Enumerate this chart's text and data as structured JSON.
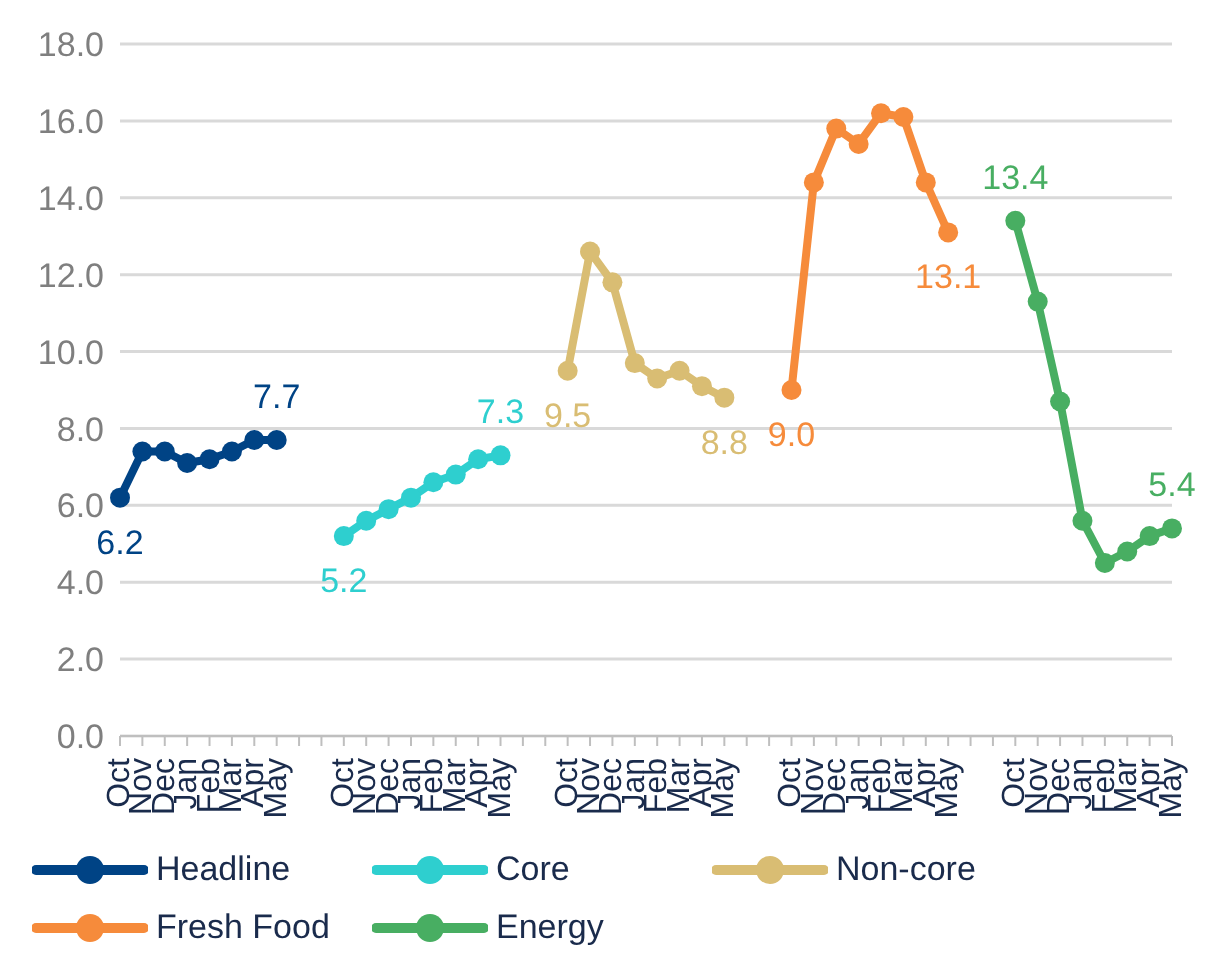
{
  "chart_data": {
    "type": "line",
    "categories": [
      "Oct",
      "Nov",
      "Dec",
      "Jan",
      "Feb",
      "Mar",
      "Apr",
      "May",
      null,
      null,
      "Oct",
      "Nov",
      "Dec",
      "Jan",
      "Feb",
      "Mar",
      "Apr",
      "May",
      null,
      null,
      "Oct",
      "Nov",
      "Dec",
      "Jan",
      "Feb",
      "Mar",
      "Apr",
      "May",
      null,
      null,
      "Oct",
      "Nov",
      "Dec",
      "Jan",
      "Feb",
      "Mar",
      "Apr",
      "May",
      null,
      null,
      "Oct",
      "Nov",
      "Dec",
      "Jan",
      "Feb",
      "Mar",
      "Apr",
      "May"
    ],
    "series": [
      {
        "name": "Headline",
        "color": "#004385",
        "values": [
          6.2,
          7.4,
          7.4,
          7.1,
          7.2,
          7.4,
          7.7,
          7.7,
          null,
          null,
          null,
          null,
          null,
          null,
          null,
          null,
          null,
          null,
          null,
          null,
          null,
          null,
          null,
          null,
          null,
          null,
          null,
          null,
          null,
          null,
          null,
          null,
          null,
          null,
          null,
          null,
          null,
          null,
          null,
          null,
          null,
          null,
          null,
          null,
          null,
          null,
          null,
          null
        ],
        "value_labels": [
          "6.2",
          null,
          null,
          null,
          null,
          null,
          null,
          "7.7",
          null,
          null,
          null,
          null,
          null,
          null,
          null,
          null,
          null,
          null,
          null,
          null,
          null,
          null,
          null,
          null,
          null,
          null,
          null,
          null,
          null,
          null,
          null,
          null,
          null,
          null,
          null,
          null,
          null,
          null,
          null,
          null,
          null,
          null,
          null,
          null,
          null,
          null,
          null,
          null
        ]
      },
      {
        "name": "Core",
        "color": "#2ecfcf",
        "values": [
          null,
          null,
          null,
          null,
          null,
          null,
          null,
          null,
          null,
          null,
          5.2,
          5.6,
          5.9,
          6.2,
          6.6,
          6.8,
          7.2,
          7.3,
          null,
          null,
          null,
          null,
          null,
          null,
          null,
          null,
          null,
          null,
          null,
          null,
          null,
          null,
          null,
          null,
          null,
          null,
          null,
          null,
          null,
          null,
          null,
          null,
          null,
          null,
          null,
          null,
          null,
          null
        ],
        "value_labels": [
          null,
          null,
          null,
          null,
          null,
          null,
          null,
          null,
          null,
          null,
          "5.2",
          null,
          null,
          null,
          null,
          null,
          null,
          "7.3",
          null,
          null,
          null,
          null,
          null,
          null,
          null,
          null,
          null,
          null,
          null,
          null,
          null,
          null,
          null,
          null,
          null,
          null,
          null,
          null,
          null,
          null,
          null,
          null,
          null,
          null,
          null,
          null,
          null,
          null
        ]
      },
      {
        "name": "Non-core",
        "color": "#d9bd73",
        "values": [
          null,
          null,
          null,
          null,
          null,
          null,
          null,
          null,
          null,
          null,
          null,
          null,
          null,
          null,
          null,
          null,
          null,
          null,
          null,
          null,
          9.5,
          12.6,
          11.8,
          9.7,
          9.3,
          9.5,
          9.1,
          8.8,
          null,
          null,
          null,
          null,
          null,
          null,
          null,
          null,
          null,
          null,
          null,
          null,
          null,
          null,
          null,
          null,
          null,
          null,
          null,
          null
        ],
        "value_labels": [
          null,
          null,
          null,
          null,
          null,
          null,
          null,
          null,
          null,
          null,
          null,
          null,
          null,
          null,
          null,
          null,
          null,
          null,
          null,
          null,
          "9.5",
          null,
          null,
          null,
          null,
          null,
          null,
          "8.8",
          null,
          null,
          null,
          null,
          null,
          null,
          null,
          null,
          null,
          null,
          null,
          null,
          null,
          null,
          null,
          null,
          null,
          null,
          null,
          null
        ]
      },
      {
        "name": "Fresh Food",
        "color": "#f68b3b",
        "values": [
          null,
          null,
          null,
          null,
          null,
          null,
          null,
          null,
          null,
          null,
          null,
          null,
          null,
          null,
          null,
          null,
          null,
          null,
          null,
          null,
          null,
          null,
          null,
          null,
          null,
          null,
          null,
          null,
          null,
          null,
          9.0,
          14.4,
          15.8,
          15.4,
          16.2,
          16.1,
          14.4,
          13.1,
          null,
          null,
          null,
          null,
          null,
          null,
          null,
          null,
          null,
          null
        ],
        "value_labels": [
          null,
          null,
          null,
          null,
          null,
          null,
          null,
          null,
          null,
          null,
          null,
          null,
          null,
          null,
          null,
          null,
          null,
          null,
          null,
          null,
          null,
          null,
          null,
          null,
          null,
          null,
          null,
          null,
          null,
          null,
          "9.0",
          null,
          null,
          null,
          null,
          null,
          null,
          "13.1",
          null,
          null,
          null,
          null,
          null,
          null,
          null,
          null,
          null,
          null
        ]
      },
      {
        "name": "Energy",
        "color": "#48ae62",
        "values": [
          null,
          null,
          null,
          null,
          null,
          null,
          null,
          null,
          null,
          null,
          null,
          null,
          null,
          null,
          null,
          null,
          null,
          null,
          null,
          null,
          null,
          null,
          null,
          null,
          null,
          null,
          null,
          null,
          null,
          null,
          null,
          null,
          null,
          null,
          null,
          null,
          null,
          null,
          null,
          null,
          13.4,
          11.3,
          8.7,
          5.6,
          4.5,
          4.8,
          5.2,
          5.4
        ],
        "value_labels": [
          null,
          null,
          null,
          null,
          null,
          null,
          null,
          null,
          null,
          null,
          null,
          null,
          null,
          null,
          null,
          null,
          null,
          null,
          null,
          null,
          null,
          null,
          null,
          null,
          null,
          null,
          null,
          null,
          null,
          null,
          null,
          null,
          null,
          null,
          null,
          null,
          null,
          null,
          null,
          null,
          "13.4",
          null,
          null,
          null,
          null,
          null,
          null,
          "5.4"
        ]
      }
    ],
    "ylim": [
      0,
      18
    ],
    "yticks": [
      {
        "value": 0,
        "label": "0.0"
      },
      {
        "value": 2,
        "label": "2.0"
      },
      {
        "value": 4,
        "label": "4.0"
      },
      {
        "value": 6,
        "label": "6.0"
      },
      {
        "value": 8,
        "label": "8.0"
      },
      {
        "value": 10,
        "label": "10.0"
      },
      {
        "value": 12,
        "label": "12.0"
      },
      {
        "value": 14,
        "label": "14.0"
      },
      {
        "value": 16,
        "label": "16.0"
      },
      {
        "value": 18,
        "label": "18.0"
      }
    ],
    "grid": "y",
    "legend": "bottom",
    "marker": "circle",
    "line_style": "solid"
  }
}
